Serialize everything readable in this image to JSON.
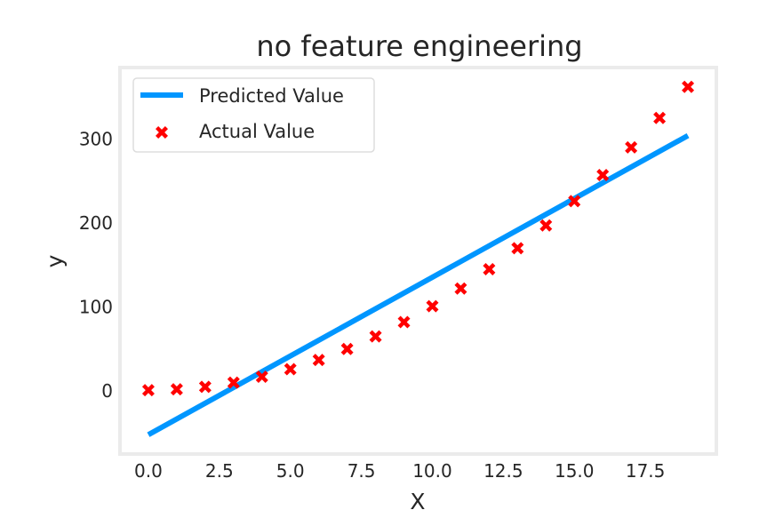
{
  "chart_data": {
    "type": "scatter",
    "title": "no feature engineering",
    "xlabel": "X",
    "ylabel": "y",
    "xlim": [
      -1,
      20
    ],
    "ylim": [
      -75,
      385
    ],
    "xticks": [
      0.0,
      2.5,
      5.0,
      7.5,
      10.0,
      12.5,
      15.0,
      17.5
    ],
    "xtick_labels": [
      "0.0",
      "2.5",
      "5.0",
      "7.5",
      "10.0",
      "12.5",
      "15.0",
      "17.5"
    ],
    "yticks": [
      0,
      100,
      200,
      300
    ],
    "ytick_labels": [
      "0",
      "100",
      "200",
      "300"
    ],
    "grid": false,
    "legend_position": "upper-left",
    "series": [
      {
        "name": "Predicted Value",
        "kind": "line",
        "color": "#0096ff",
        "x": [
          0,
          19
        ],
        "y": [
          -52,
          304
        ]
      },
      {
        "name": "Actual Value",
        "kind": "scatter",
        "marker": "X",
        "color": "#ff0000",
        "x": [
          0,
          1,
          2,
          3,
          4,
          5,
          6,
          7,
          8,
          9,
          10,
          11,
          12,
          13,
          14,
          15,
          16,
          17,
          18,
          19
        ],
        "y": [
          1,
          2,
          5,
          10,
          17,
          26,
          37,
          50,
          65,
          82,
          101,
          122,
          145,
          170,
          197,
          226,
          257,
          290,
          325,
          362
        ]
      }
    ]
  }
}
